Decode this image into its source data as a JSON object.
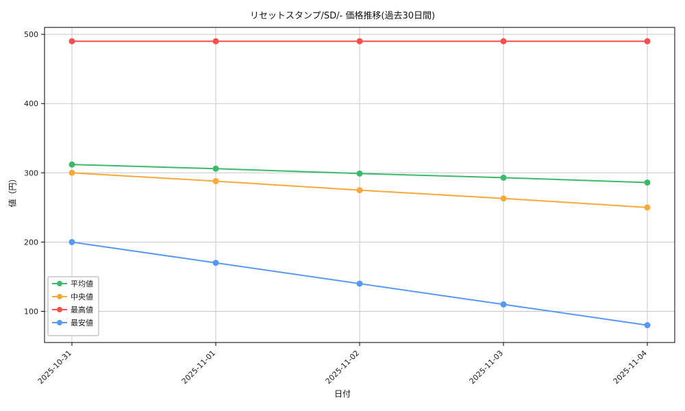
{
  "chart_data": {
    "type": "line",
    "title": "リセットスタンプ/SD/- 価格推移(過去30日間)",
    "xlabel": "日付",
    "ylabel": "値（円）",
    "categories": [
      "2025-10-31",
      "2025-11-01",
      "2025-11-02",
      "2025-11-03",
      "2025-11-04"
    ],
    "series": [
      {
        "name": "平均値",
        "color": "#3cb96a",
        "values": [
          312,
          306,
          299,
          293,
          286
        ]
      },
      {
        "name": "中央値",
        "color": "#f9a93a",
        "values": [
          300,
          288,
          275,
          263,
          250
        ]
      },
      {
        "name": "最高値",
        "color": "#f4514c",
        "values": [
          490,
          490,
          490,
          490,
          490
        ]
      },
      {
        "name": "最安値",
        "color": "#5599f5",
        "values": [
          200,
          170,
          140,
          110,
          80
        ]
      }
    ],
    "yticks": [
      100,
      200,
      300,
      400,
      500
    ],
    "ylim": [
      55,
      510
    ],
    "grid": true,
    "legend_position": "lower-left",
    "marker": "circle"
  }
}
